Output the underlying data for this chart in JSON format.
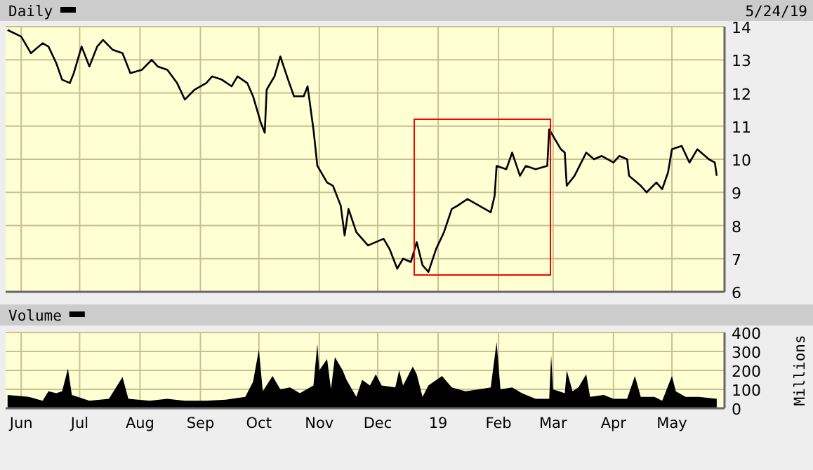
{
  "chart_data": [
    {
      "type": "line",
      "legend": "top left",
      "annotations": [
        "5/24/19"
      ],
      "grid": true,
      "tick_labels": "y",
      "marker": "none",
      "xlim": [
        "2018-05-24",
        "2019-05-28"
      ],
      "xticks": [
        {
          "value": "2018-06-01",
          "label": null
        },
        {
          "value": "2018-07-01",
          "label": null
        },
        {
          "value": "2018-08-01",
          "label": null
        },
        {
          "value": "2018-09-01",
          "label": null
        },
        {
          "value": "2018-10-01",
          "label": null
        },
        {
          "value": "2018-11-01",
          "label": null
        },
        {
          "value": "2018-12-01",
          "label": null
        },
        {
          "value": "2019-01-01",
          "label": null
        },
        {
          "value": "2019-02-01",
          "label": null
        },
        {
          "value": "2019-03-01",
          "label": null
        },
        {
          "value": "2019-04-01",
          "label": null
        },
        {
          "value": "2019-05-01",
          "label": null
        }
      ],
      "ylim": [
        6,
        14
      ],
      "yticks": [
        6,
        7,
        8,
        9,
        10,
        11,
        12,
        13,
        14
      ],
      "series": [
        {
          "name": "Daily",
          "color": "#000000",
          "x": [
            "2018-05-25",
            "2018-06-01",
            "2018-06-06",
            "2018-06-12",
            "2018-06-15",
            "2018-06-19",
            "2018-06-22",
            "2018-06-26",
            "2018-06-28",
            "2018-07-02",
            "2018-07-06",
            "2018-07-10",
            "2018-07-13",
            "2018-07-18",
            "2018-07-23",
            "2018-07-27",
            "2018-08-02",
            "2018-08-07",
            "2018-08-10",
            "2018-08-15",
            "2018-08-20",
            "2018-08-24",
            "2018-08-29",
            "2018-09-04",
            "2018-09-07",
            "2018-09-12",
            "2018-09-17",
            "2018-09-20",
            "2018-09-25",
            "2018-09-28",
            "2018-10-02",
            "2018-10-04",
            "2018-10-05",
            "2018-10-09",
            "2018-10-12",
            "2018-10-16",
            "2018-10-19",
            "2018-10-24",
            "2018-10-26",
            "2018-10-29",
            "2018-10-31",
            "2018-11-05",
            "2018-11-08",
            "2018-11-12",
            "2018-11-14",
            "2018-11-16",
            "2018-11-20",
            "2018-11-26",
            "2018-11-30",
            "2018-12-04",
            "2018-12-07",
            "2018-12-11",
            "2018-12-14",
            "2018-12-18",
            "2018-12-21",
            "2018-12-24",
            "2018-12-27",
            "2018-12-31",
            "2019-01-04",
            "2019-01-08",
            "2019-01-11",
            "2019-01-16",
            "2019-01-22",
            "2019-01-28",
            "2019-01-30",
            "2019-01-31",
            "2019-02-05",
            "2019-02-08",
            "2019-02-12",
            "2019-02-15",
            "2019-02-20",
            "2019-02-26",
            "2019-02-27",
            "2019-03-01",
            "2019-03-05",
            "2019-03-07",
            "2019-03-08",
            "2019-03-12",
            "2019-03-18",
            "2019-03-22",
            "2019-03-26",
            "2019-04-01",
            "2019-04-04",
            "2019-04-08",
            "2019-04-09",
            "2019-04-15",
            "2019-04-18",
            "2019-04-23",
            "2019-04-26",
            "2019-04-29",
            "2019-05-01",
            "2019-05-06",
            "2019-05-10",
            "2019-05-14",
            "2019-05-20",
            "2019-05-23",
            "2019-05-24"
          ],
          "values": [
            13.9,
            13.7,
            13.2,
            13.5,
            13.4,
            12.9,
            12.4,
            12.3,
            12.6,
            13.4,
            12.8,
            13.4,
            13.6,
            13.3,
            13.2,
            12.6,
            12.7,
            13.0,
            12.8,
            12.7,
            12.3,
            11.8,
            12.1,
            12.3,
            12.5,
            12.4,
            12.2,
            12.5,
            12.3,
            11.9,
            11.1,
            10.8,
            12.1,
            12.5,
            13.1,
            12.4,
            11.9,
            11.9,
            12.2,
            10.9,
            9.8,
            9.3,
            9.2,
            8.6,
            7.7,
            8.5,
            7.8,
            7.4,
            7.5,
            7.6,
            7.3,
            6.7,
            7.0,
            6.9,
            7.5,
            6.8,
            6.6,
            7.3,
            7.8,
            8.5,
            8.6,
            8.8,
            8.6,
            8.4,
            8.9,
            9.8,
            9.7,
            10.2,
            9.5,
            9.8,
            9.7,
            9.8,
            10.9,
            10.7,
            10.3,
            10.2,
            9.2,
            9.5,
            10.2,
            10.0,
            10.1,
            9.9,
            10.1,
            10.0,
            9.5,
            9.2,
            9.0,
            9.3,
            9.1,
            9.6,
            10.3,
            10.4,
            9.9,
            10.3,
            10.0,
            9.9,
            9.5
          ]
        }
      ]
    },
    {
      "type": "area",
      "legend": "top left",
      "ylabel": "Millions",
      "grid": true,
      "xlim": [
        "2018-05-24",
        "2019-05-28"
      ],
      "xticks": [
        {
          "value": "2018-06-01",
          "label": "Jun"
        },
        {
          "value": "2018-07-01",
          "label": "Jul"
        },
        {
          "value": "2018-08-01",
          "label": "Aug"
        },
        {
          "value": "2018-09-01",
          "label": "Sep"
        },
        {
          "value": "2018-10-01",
          "label": "Oct"
        },
        {
          "value": "2018-11-01",
          "label": "Nov"
        },
        {
          "value": "2018-12-01",
          "label": "Dec"
        },
        {
          "value": "2019-01-01",
          "label": "19"
        },
        {
          "value": "2019-02-01",
          "label": "Feb"
        },
        {
          "value": "2019-03-01",
          "label": "Mar"
        },
        {
          "value": "2019-04-01",
          "label": "Apr"
        },
        {
          "value": "2019-05-01",
          "label": "May"
        }
      ],
      "ylim": [
        0,
        400
      ],
      "yticks": [
        0,
        100,
        200,
        300,
        400
      ],
      "series": [
        {
          "name": "Volume",
          "color": "#000000",
          "x": [
            "2018-05-25",
            "2018-06-05",
            "2018-06-12",
            "2018-06-15",
            "2018-06-19",
            "2018-06-22",
            "2018-06-25",
            "2018-06-27",
            "2018-07-06",
            "2018-07-16",
            "2018-07-23",
            "2018-07-26",
            "2018-08-06",
            "2018-08-15",
            "2018-08-24",
            "2018-09-04",
            "2018-09-14",
            "2018-09-24",
            "2018-09-28",
            "2018-10-01",
            "2018-10-03",
            "2018-10-08",
            "2018-10-12",
            "2018-10-17",
            "2018-10-22",
            "2018-10-29",
            "2018-10-31",
            "2018-11-01",
            "2018-11-05",
            "2018-11-07",
            "2018-11-09",
            "2018-11-13",
            "2018-11-15",
            "2018-11-20",
            "2018-11-23",
            "2018-11-27",
            "2018-11-30",
            "2018-12-03",
            "2018-12-10",
            "2018-12-12",
            "2018-12-14",
            "2018-12-19",
            "2018-12-21",
            "2018-12-24",
            "2018-12-27",
            "2019-01-03",
            "2019-01-08",
            "2019-01-15",
            "2019-01-22",
            "2019-01-28",
            "2019-01-31",
            "2019-02-02",
            "2019-02-08",
            "2019-02-13",
            "2019-02-20",
            "2019-02-27",
            "2019-02-28",
            "2019-03-01",
            "2019-03-07",
            "2019-03-08",
            "2019-03-11",
            "2019-03-14",
            "2019-03-18",
            "2019-03-20",
            "2019-03-27",
            "2019-04-01",
            "2019-04-08",
            "2019-04-12",
            "2019-04-15",
            "2019-04-22",
            "2019-04-26",
            "2019-05-01",
            "2019-05-03",
            "2019-05-08",
            "2019-05-15",
            "2019-05-24"
          ],
          "values": [
            70,
            60,
            40,
            90,
            80,
            90,
            210,
            70,
            40,
            50,
            165,
            50,
            40,
            50,
            40,
            40,
            45,
            60,
            140,
            310,
            90,
            170,
            100,
            110,
            80,
            120,
            340,
            200,
            260,
            100,
            270,
            200,
            150,
            60,
            150,
            120,
            180,
            120,
            110,
            200,
            120,
            220,
            180,
            60,
            120,
            170,
            110,
            90,
            100,
            110,
            350,
            100,
            110,
            80,
            50,
            50,
            280,
            100,
            80,
            200,
            90,
            110,
            180,
            60,
            70,
            50,
            50,
            170,
            60,
            60,
            40,
            170,
            90,
            60,
            60,
            50
          ]
        }
      ]
    }
  ]
}
